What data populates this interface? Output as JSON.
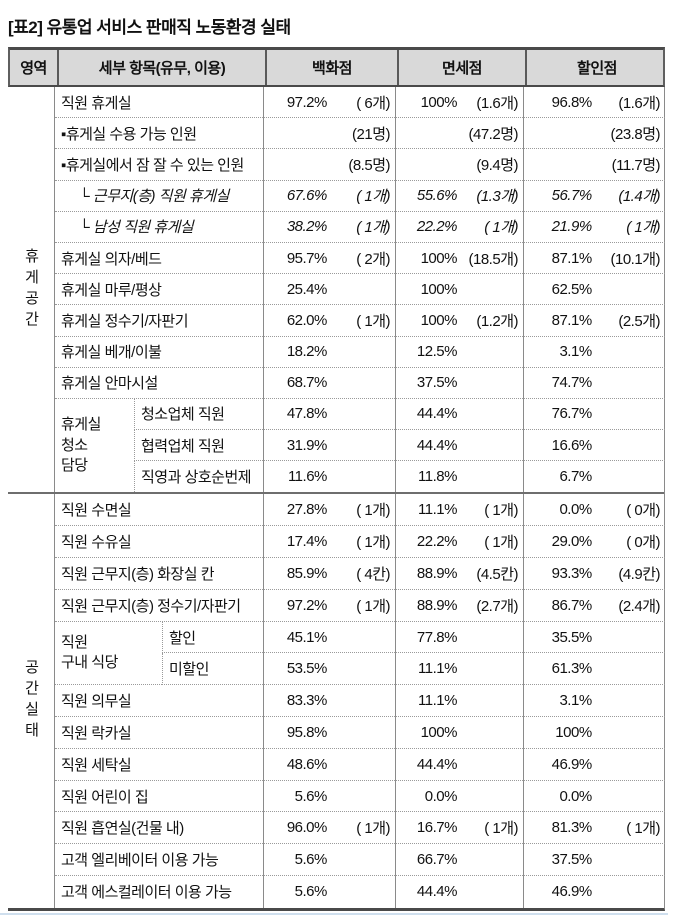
{
  "title": "[표2] 유통업 서비스 판매직 노동환경 실태",
  "table": {
    "columns": [
      "영역",
      "세부 항목(유무, 이용)",
      "백화점",
      "면세점",
      "할인점"
    ],
    "sections": [
      {
        "area": "휴게공간",
        "rows": [
          {
            "label": "직원 휴게실",
            "cells": [
              [
                "97.2%",
                "( 6개)"
              ],
              [
                "100%",
                "(1.6개)"
              ],
              [
                "96.8%",
                "(1.6개)"
              ]
            ]
          },
          {
            "label": "▪휴게실 수용 가능 인원",
            "cells": [
              [
                "",
                "(21명)"
              ],
              [
                "",
                "(47.2명)"
              ],
              [
                "",
                "(23.8명)"
              ]
            ]
          },
          {
            "label": "▪휴게실에서 잠 잘 수 있는 인원",
            "cells": [
              [
                "",
                "(8.5명)"
              ],
              [
                "",
                "(9.4명)"
              ],
              [
                "",
                "(11.7명)"
              ]
            ]
          },
          {
            "label": "└ 근무지(층) 직원 휴게실",
            "sub": true,
            "cells": [
              [
                "67.6%",
                "( 1개)"
              ],
              [
                "55.6%",
                "(1.3개)"
              ],
              [
                "56.7%",
                "(1.4개)"
              ]
            ]
          },
          {
            "label": "└ 남성 직원 휴게실",
            "sub": true,
            "cells": [
              [
                "38.2%",
                "( 1개)"
              ],
              [
                "22.2%",
                "( 1개)"
              ],
              [
                "21.9%",
                "( 1개)"
              ]
            ]
          },
          {
            "label": "휴게실 의자/베드",
            "cells": [
              [
                "95.7%",
                "( 2개)"
              ],
              [
                "100%",
                "(18.5개)"
              ],
              [
                "87.1%",
                "(10.1개)"
              ]
            ]
          },
          {
            "label": "휴게실 마루/평상",
            "cells": [
              [
                "25.4%",
                ""
              ],
              [
                "100%",
                ""
              ],
              [
                "62.5%",
                ""
              ]
            ]
          },
          {
            "label": "휴게실 정수기/자판기",
            "cells": [
              [
                "62.0%",
                "( 1개)"
              ],
              [
                "100%",
                "(1.2개)"
              ],
              [
                "87.1%",
                "(2.5개)"
              ]
            ]
          },
          {
            "label": "휴게실 베개/이불",
            "cells": [
              [
                "18.2%",
                ""
              ],
              [
                "12.5%",
                ""
              ],
              [
                "3.1%",
                ""
              ]
            ]
          },
          {
            "label": "휴게실 안마시설",
            "cells": [
              [
                "68.7%",
                ""
              ],
              [
                "37.5%",
                ""
              ],
              [
                "74.7%",
                ""
              ]
            ]
          },
          {
            "label": "청소업체 직원",
            "group": {
              "label": "휴게실\n청소\n담당",
              "span": 3,
              "wide": false
            },
            "cells": [
              [
                "47.8%",
                ""
              ],
              [
                "44.4%",
                ""
              ],
              [
                "76.7%",
                ""
              ]
            ]
          },
          {
            "label": "협력업체 직원",
            "inGroup": true,
            "cells": [
              [
                "31.9%",
                ""
              ],
              [
                "44.4%",
                ""
              ],
              [
                "16.6%",
                ""
              ]
            ]
          },
          {
            "label": "직영과 상호순번제",
            "inGroup": true,
            "cells": [
              [
                "11.6%",
                ""
              ],
              [
                "11.8%",
                ""
              ],
              [
                "6.7%",
                ""
              ]
            ]
          }
        ]
      },
      {
        "area": "공간실태",
        "rows": [
          {
            "label": "직원 수면실",
            "cells": [
              [
                "27.8%",
                "( 1개)"
              ],
              [
                "11.1%",
                "( 1개)"
              ],
              [
                "0.0%",
                "( 0개)"
              ]
            ]
          },
          {
            "label": "직원 수유실",
            "cells": [
              [
                "17.4%",
                "( 1개)"
              ],
              [
                "22.2%",
                "( 1개)"
              ],
              [
                "29.0%",
                "( 0개)"
              ]
            ]
          },
          {
            "label": "직원 근무지(층) 화장실 칸",
            "cells": [
              [
                "85.9%",
                "( 4칸)"
              ],
              [
                "88.9%",
                "(4.5칸)"
              ],
              [
                "93.3%",
                "(4.9칸)"
              ]
            ]
          },
          {
            "label": "직원 근무지(층) 정수기/자판기",
            "cells": [
              [
                "97.2%",
                "( 1개)"
              ],
              [
                "88.9%",
                "(2.7개)"
              ],
              [
                "86.7%",
                "(2.4개)"
              ]
            ]
          },
          {
            "label": "할인",
            "group": {
              "label": "직원\n구내 식당",
              "span": 2,
              "wide": true
            },
            "cells": [
              [
                "45.1%",
                ""
              ],
              [
                "77.8%",
                ""
              ],
              [
                "35.5%",
                ""
              ]
            ]
          },
          {
            "label": "미할인",
            "inGroup": true,
            "cells": [
              [
                "53.5%",
                ""
              ],
              [
                "11.1%",
                ""
              ],
              [
                "61.3%",
                ""
              ]
            ]
          },
          {
            "label": "직원 의무실",
            "cells": [
              [
                "83.3%",
                ""
              ],
              [
                "11.1%",
                ""
              ],
              [
                "3.1%",
                ""
              ]
            ]
          },
          {
            "label": "직원 락카실",
            "cells": [
              [
                "95.8%",
                ""
              ],
              [
                "100%",
                ""
              ],
              [
                "100%",
                ""
              ]
            ]
          },
          {
            "label": "직원 세탁실",
            "cells": [
              [
                "48.6%",
                ""
              ],
              [
                "44.4%",
                ""
              ],
              [
                "46.9%",
                ""
              ]
            ]
          },
          {
            "label": "직원 어린이 집",
            "cells": [
              [
                "5.6%",
                ""
              ],
              [
                "0.0%",
                ""
              ],
              [
                "0.0%",
                ""
              ]
            ]
          },
          {
            "label": "직원 흡연실(건물 내)",
            "cells": [
              [
                "96.0%",
                "( 1개)"
              ],
              [
                "16.7%",
                "( 1개)"
              ],
              [
                "81.3%",
                "( 1개)"
              ]
            ]
          },
          {
            "label": "고객 엘리베이터 이용 가능",
            "cells": [
              [
                "5.6%",
                ""
              ],
              [
                "66.7%",
                ""
              ],
              [
                "37.5%",
                ""
              ]
            ]
          },
          {
            "label": "고객 에스컬레이터 이용 가능",
            "cells": [
              [
                "5.6%",
                ""
              ],
              [
                "44.4%",
                ""
              ],
              [
                "46.9%",
                ""
              ]
            ]
          }
        ]
      }
    ]
  }
}
